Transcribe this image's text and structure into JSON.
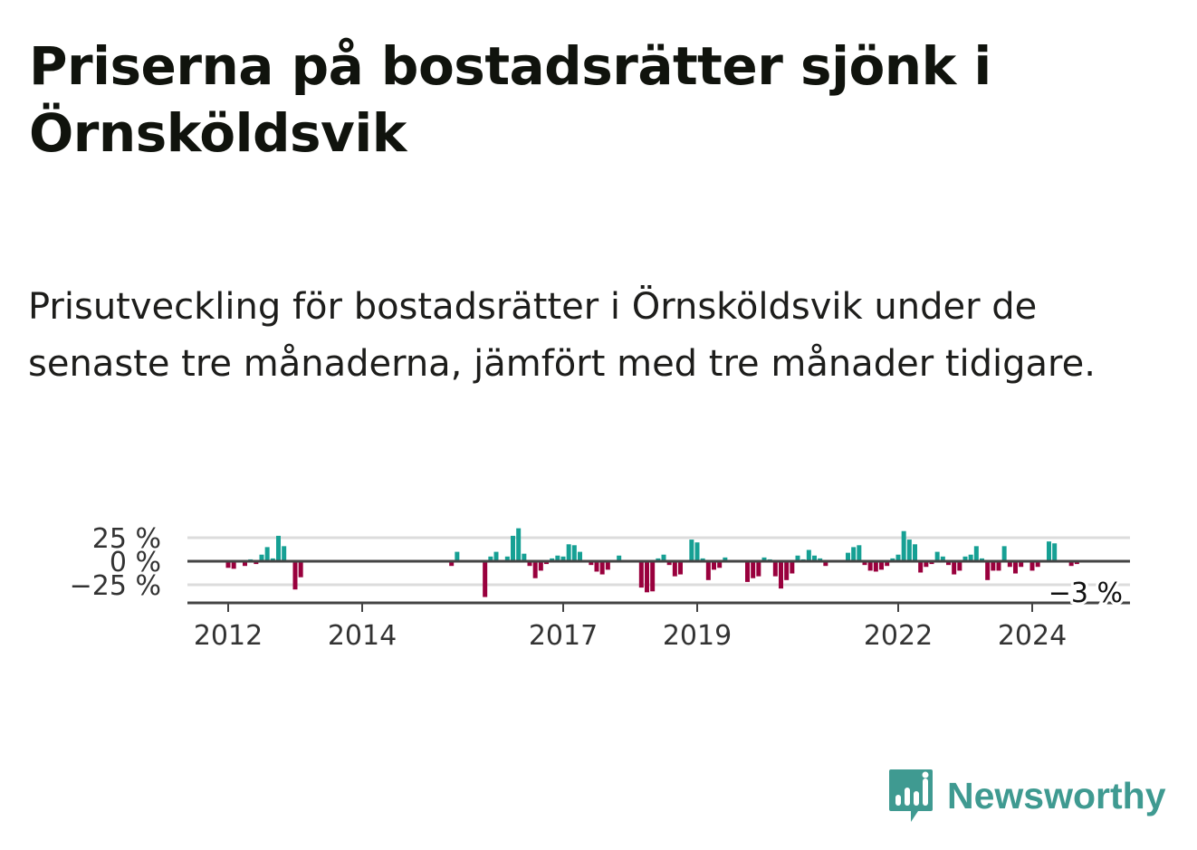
{
  "header": {
    "title": "Priserna på bostadsrätter sjönk i Örnsköldsvik",
    "subtitle": "Prisutveckling för bostadsrätter i Örnsköldsvik under de senaste tre månaderna, jämfört med tre månader tidigare."
  },
  "brand": {
    "name": "Newsworthy",
    "icon": "newsworthy-logo-icon",
    "color": "#3f9a91"
  },
  "chart_data": {
    "type": "bar",
    "title": "",
    "xlabel": "",
    "ylabel": "",
    "ylim": [
      -45,
      38
    ],
    "y_ticks": [
      25,
      0,
      -25
    ],
    "y_tick_labels": [
      "25 %",
      "0 %",
      "−25 %"
    ],
    "x_tick_labels": [
      {
        "date": "2012-01",
        "label": "2012"
      },
      {
        "date": "2014-01",
        "label": "2014"
      },
      {
        "date": "2017-01",
        "label": "2017"
      },
      {
        "date": "2019-01",
        "label": "2019"
      },
      {
        "date": "2022-01",
        "label": "2022"
      },
      {
        "date": "2024-01",
        "label": "2024"
      }
    ],
    "grid": true,
    "positive_color": "#16a094",
    "negative_color": "#99003d",
    "last_value_label": "−3 %",
    "series": [
      {
        "values": [
          [
            "2012-01",
            -7
          ],
          [
            "2012-02",
            -8
          ],
          [
            "2012-04",
            -5
          ],
          [
            "2012-05",
            2
          ],
          [
            "2012-06",
            -3
          ],
          [
            "2012-07",
            7
          ],
          [
            "2012-08",
            15
          ],
          [
            "2012-09",
            3
          ],
          [
            "2012-10",
            27
          ],
          [
            "2012-11",
            16
          ],
          [
            "2013-01",
            -30
          ],
          [
            "2013-02",
            -17
          ],
          [
            "2015-05",
            -5
          ],
          [
            "2015-06",
            10
          ],
          [
            "2015-11",
            -38
          ],
          [
            "2015-12",
            5
          ],
          [
            "2016-01",
            10
          ],
          [
            "2016-03",
            5
          ],
          [
            "2016-04",
            27
          ],
          [
            "2016-05",
            35
          ],
          [
            "2016-06",
            8
          ],
          [
            "2016-07",
            -5
          ],
          [
            "2016-08",
            -18
          ],
          [
            "2016-09",
            -10
          ],
          [
            "2016-10",
            -3
          ],
          [
            "2016-11",
            3
          ],
          [
            "2016-12",
            6
          ],
          [
            "2017-01",
            5
          ],
          [
            "2017-02",
            18
          ],
          [
            "2017-03",
            17
          ],
          [
            "2017-04",
            10
          ],
          [
            "2017-06",
            -4
          ],
          [
            "2017-07",
            -11
          ],
          [
            "2017-08",
            -14
          ],
          [
            "2017-09",
            -9
          ],
          [
            "2017-11",
            6
          ],
          [
            "2018-03",
            -28
          ],
          [
            "2018-04",
            -33
          ],
          [
            "2018-05",
            -32
          ],
          [
            "2018-06",
            3
          ],
          [
            "2018-07",
            7
          ],
          [
            "2018-08",
            -4
          ],
          [
            "2018-09",
            -16
          ],
          [
            "2018-10",
            -14
          ],
          [
            "2018-12",
            23
          ],
          [
            "2019-01",
            20
          ],
          [
            "2019-02",
            3
          ],
          [
            "2019-03",
            -20
          ],
          [
            "2019-04",
            -9
          ],
          [
            "2019-05",
            -7
          ],
          [
            "2019-06",
            4
          ],
          [
            "2019-10",
            -22
          ],
          [
            "2019-11",
            -18
          ],
          [
            "2019-12",
            -16
          ],
          [
            "2020-01",
            4
          ],
          [
            "2020-02",
            2
          ],
          [
            "2020-03",
            -16
          ],
          [
            "2020-04",
            -29
          ],
          [
            "2020-05",
            -20
          ],
          [
            "2020-06",
            -13
          ],
          [
            "2020-07",
            6
          ],
          [
            "2020-08",
            2
          ],
          [
            "2020-09",
            12
          ],
          [
            "2020-10",
            6
          ],
          [
            "2020-11",
            3
          ],
          [
            "2020-12",
            -5
          ],
          [
            "2021-04",
            9
          ],
          [
            "2021-05",
            15
          ],
          [
            "2021-06",
            17
          ],
          [
            "2021-07",
            -4
          ],
          [
            "2021-08",
            -10
          ],
          [
            "2021-09",
            -11
          ],
          [
            "2021-10",
            -9
          ],
          [
            "2021-11",
            -5
          ],
          [
            "2021-12",
            3
          ],
          [
            "2022-01",
            7
          ],
          [
            "2022-02",
            32
          ],
          [
            "2022-03",
            23
          ],
          [
            "2022-04",
            18
          ],
          [
            "2022-05",
            -12
          ],
          [
            "2022-06",
            -6
          ],
          [
            "2022-07",
            -3
          ],
          [
            "2022-08",
            10
          ],
          [
            "2022-09",
            5
          ],
          [
            "2022-10",
            -4
          ],
          [
            "2022-11",
            -14
          ],
          [
            "2022-12",
            -10
          ],
          [
            "2023-01",
            5
          ],
          [
            "2023-02",
            7
          ],
          [
            "2023-03",
            16
          ],
          [
            "2023-04",
            3
          ],
          [
            "2023-05",
            -20
          ],
          [
            "2023-06",
            -10
          ],
          [
            "2023-07",
            -10
          ],
          [
            "2023-08",
            16
          ],
          [
            "2023-09",
            -6
          ],
          [
            "2023-10",
            -13
          ],
          [
            "2023-11",
            -6
          ],
          [
            "2024-01",
            -10
          ],
          [
            "2024-02",
            -6
          ],
          [
            "2024-04",
            21
          ],
          [
            "2024-05",
            19
          ],
          [
            "2024-08",
            -5
          ],
          [
            "2024-09",
            -3
          ]
        ]
      }
    ]
  }
}
